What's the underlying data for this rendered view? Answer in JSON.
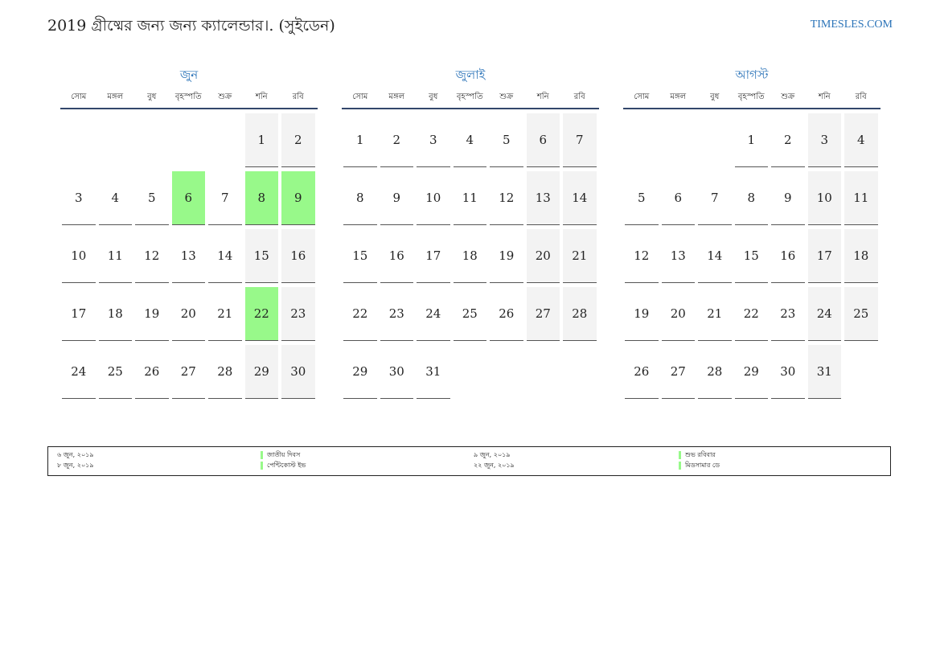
{
  "header": {
    "title": "2019 গ্রীষ্মের জন্য জন্য ক্যালেন্ডার।. (সুইডেন)",
    "site": "TIMESLES.COM"
  },
  "weekdays": [
    "সোম",
    "মঙ্গল",
    "বুধ",
    "বৃহস্পতি",
    "শুক্র",
    "শনি",
    "রবি"
  ],
  "colors": {
    "accent": "#2a73b8",
    "holiday": "#98f98a",
    "weekend": "#f3f3f3",
    "rule": "#33476b"
  },
  "months": [
    {
      "name": "জুন",
      "offset": 5,
      "days": [
        "1",
        "2",
        "3",
        "4",
        "5",
        "6",
        "7",
        "8",
        "9",
        "10",
        "11",
        "12",
        "13",
        "14",
        "15",
        "16",
        "17",
        "18",
        "19",
        "20",
        "21",
        "22",
        "23",
        "24",
        "25",
        "26",
        "27",
        "28",
        "29",
        "30"
      ],
      "holidays": [
        6,
        8,
        9,
        22
      ]
    },
    {
      "name": "জুলাই",
      "offset": 0,
      "days": [
        "1",
        "2",
        "3",
        "4",
        "5",
        "6",
        "7",
        "8",
        "9",
        "10",
        "11",
        "12",
        "13",
        "14",
        "15",
        "16",
        "17",
        "18",
        "19",
        "20",
        "21",
        "22",
        "23",
        "24",
        "25",
        "26",
        "27",
        "28",
        "29",
        "30",
        "31"
      ],
      "holidays": []
    },
    {
      "name": "আগস্ট",
      "offset": 3,
      "days": [
        "1",
        "2",
        "3",
        "4",
        "5",
        "6",
        "7",
        "8",
        "9",
        "10",
        "11",
        "12",
        "13",
        "14",
        "15",
        "16",
        "17",
        "18",
        "19",
        "20",
        "21",
        "22",
        "23",
        "24",
        "25",
        "26",
        "27",
        "28",
        "29",
        "30",
        "31"
      ],
      "holidays": []
    }
  ],
  "legend": [
    {
      "date": "৬ জুন, ২০১৯",
      "name": "জাতীয় দিবস"
    },
    {
      "date": "৮ জুন, ২০১৯",
      "name": "পেন্টিকোস্ট ইভ"
    },
    {
      "date": "৯ জুন, ২০১৯",
      "name": "শুভ রবিবার"
    },
    {
      "date": "২২ জুন, ২০১৯",
      "name": "মিডসামার ডে"
    }
  ]
}
